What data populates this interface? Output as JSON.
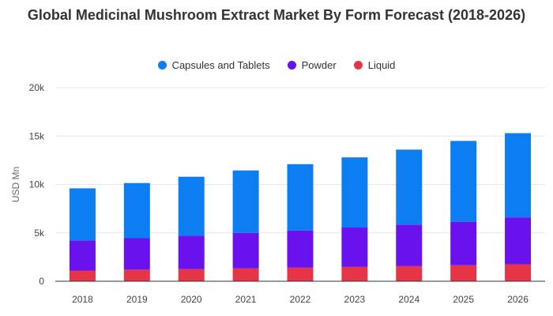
{
  "chart_data": {
    "type": "bar",
    "stacked": true,
    "title": "Global Medicinal Mushroom Extract Market By Form Forecast (2018-2026)",
    "xlabel": "",
    "ylabel": "USD Mn",
    "ylim": [
      0,
      20000
    ],
    "yticks": [
      0,
      5000,
      10000,
      15000,
      20000
    ],
    "ytick_labels": [
      "0",
      "5k",
      "10k",
      "15k",
      "20k"
    ],
    "grid": true,
    "legend_position": "top",
    "categories": [
      "2018",
      "2019",
      "2020",
      "2021",
      "2022",
      "2023",
      "2024",
      "2025",
      "2026"
    ],
    "series": [
      {
        "name": "Liquid",
        "color": "#e53546",
        "values": [
          1100,
          1200,
          1250,
          1320,
          1400,
          1480,
          1560,
          1650,
          1750
        ]
      },
      {
        "name": "Powder",
        "color": "#6a12ee",
        "values": [
          3100,
          3250,
          3450,
          3680,
          3850,
          4070,
          4290,
          4500,
          4850
        ]
      },
      {
        "name": "Capsules and Tablets",
        "color": "#0c7ef2",
        "values": [
          5400,
          5700,
          6100,
          6450,
          6850,
          7250,
          7750,
          8350,
          8700
        ]
      }
    ],
    "legend_order": [
      "Capsules and Tablets",
      "Powder",
      "Liquid"
    ]
  }
}
